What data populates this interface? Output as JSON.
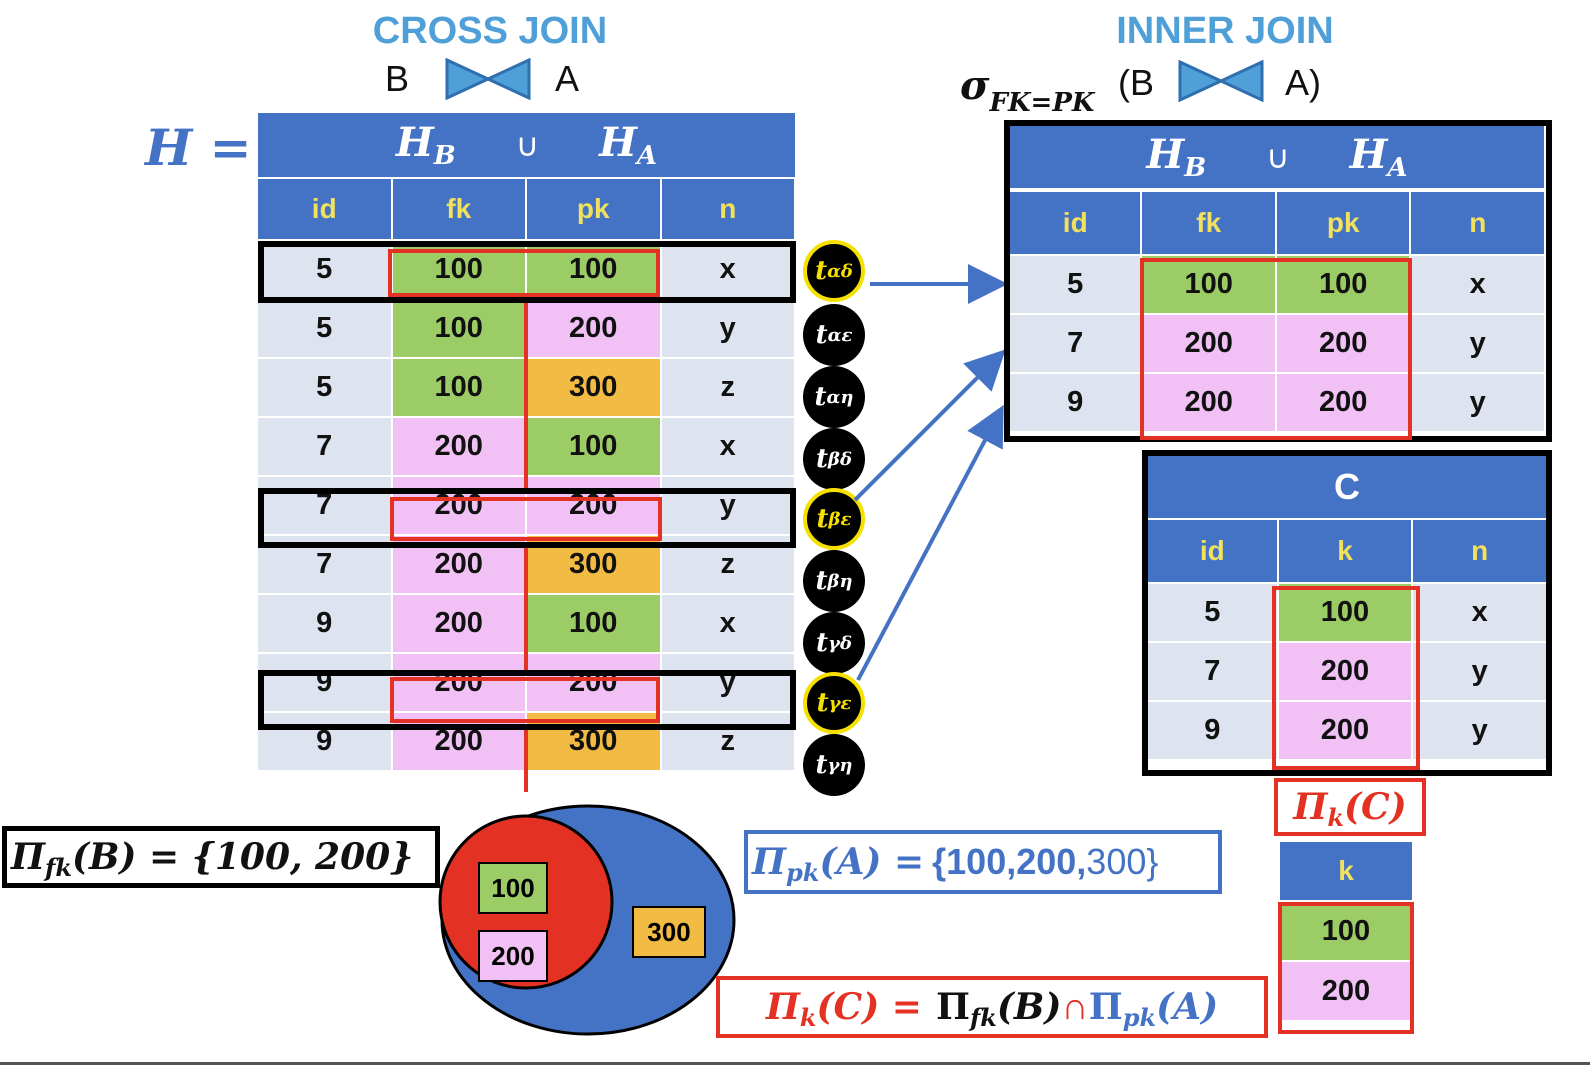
{
  "cross_join": {
    "title": "CROSS JOIN",
    "left": "B",
    "right": "A"
  },
  "inner_join": {
    "title": "INNER JOIN",
    "sigma": "σ",
    "sigma_sub": "FK=PK",
    "left": "(B",
    "right": "A)"
  },
  "h_label": "H =",
  "header_row": {
    "hb": "H",
    "hb_sub": "B",
    "union": "∪",
    "ha": "H",
    "ha_sub": "A"
  },
  "columns": [
    "id",
    "fk",
    "pk",
    "n"
  ],
  "cross_rows": [
    {
      "cells": [
        "5",
        "100",
        "100",
        "x"
      ],
      "colors": [
        "w",
        "g",
        "g",
        "w"
      ],
      "tuple": "αδ",
      "match": true
    },
    {
      "cells": [
        "5",
        "100",
        "200",
        "y"
      ],
      "colors": [
        "w",
        "g",
        "p",
        "w"
      ],
      "tuple": "αε",
      "match": false
    },
    {
      "cells": [
        "5",
        "100",
        "300",
        "z"
      ],
      "colors": [
        "w",
        "g",
        "o",
        "w"
      ],
      "tuple": "αη",
      "match": false
    },
    {
      "cells": [
        "7",
        "200",
        "100",
        "x"
      ],
      "colors": [
        "w",
        "p",
        "g",
        "w"
      ],
      "tuple": "βδ",
      "match": false
    },
    {
      "cells": [
        "7",
        "200",
        "200",
        "y"
      ],
      "colors": [
        "w",
        "p",
        "p",
        "w"
      ],
      "tuple": "βε",
      "match": true
    },
    {
      "cells": [
        "7",
        "200",
        "300",
        "z"
      ],
      "colors": [
        "w",
        "p",
        "o",
        "w"
      ],
      "tuple": "βη",
      "match": false
    },
    {
      "cells": [
        "9",
        "200",
        "100",
        "x"
      ],
      "colors": [
        "w",
        "p",
        "g",
        "w"
      ],
      "tuple": "γδ",
      "match": false
    },
    {
      "cells": [
        "9",
        "200",
        "200",
        "y"
      ],
      "colors": [
        "w",
        "p",
        "p",
        "w"
      ],
      "tuple": "γε",
      "match": true
    },
    {
      "cells": [
        "9",
        "200",
        "300",
        "z"
      ],
      "colors": [
        "w",
        "p",
        "o",
        "w"
      ],
      "tuple": "γη",
      "match": false
    }
  ],
  "tuple_prefix": "t",
  "inner_rows": [
    {
      "cells": [
        "5",
        "100",
        "100",
        "x"
      ],
      "colors": [
        "w",
        "g",
        "g",
        "w"
      ]
    },
    {
      "cells": [
        "7",
        "200",
        "200",
        "y"
      ],
      "colors": [
        "w",
        "p",
        "p",
        "w"
      ]
    },
    {
      "cells": [
        "9",
        "200",
        "200",
        "y"
      ],
      "colors": [
        "w",
        "p",
        "p",
        "w"
      ]
    }
  ],
  "c_table": {
    "title": "C",
    "columns": [
      "id",
      "k",
      "n"
    ],
    "rows": [
      {
        "cells": [
          "5",
          "100",
          "x"
        ],
        "colors": [
          "w",
          "g",
          "w"
        ]
      },
      {
        "cells": [
          "7",
          "200",
          "y"
        ],
        "colors": [
          "w",
          "p",
          "w"
        ]
      },
      {
        "cells": [
          "9",
          "200",
          "y"
        ],
        "colors": [
          "w",
          "p",
          "w"
        ]
      }
    ]
  },
  "proj_c": {
    "pi": "Π",
    "sub": "k",
    "arg": "(C)"
  },
  "k_table": {
    "header": "k",
    "rows": [
      {
        "value": "100",
        "color": "g"
      },
      {
        "value": "200",
        "color": "p"
      }
    ]
  },
  "proj_b": {
    "pi": "Π",
    "sub": "fk",
    "arg": "(B) = {100, 200}"
  },
  "proj_a": {
    "pi": "Π",
    "sub": "pk",
    "arg": "(A) =",
    "set_open": "{100,200,",
    "set_rest": "300}"
  },
  "formula": {
    "lhs_pi": "Π",
    "lhs_sub": "k",
    "lhs_arg": "(C) =",
    "b_pi": "Π",
    "b_sub": "fk",
    "b_arg": "(B)",
    "cap": "∩",
    "a_pi": "Π",
    "a_sub": "pk",
    "a_arg": "(A)"
  },
  "venn": {
    "inner_a": "100",
    "inner_b": "200",
    "outer": "300"
  },
  "colors": {
    "blue": "#4472c4",
    "green": "#9ccc65",
    "pink": "#f1c0f4",
    "orange": "#f2bb44",
    "red": "#e33224",
    "light_blue": "#4f9fd8"
  }
}
